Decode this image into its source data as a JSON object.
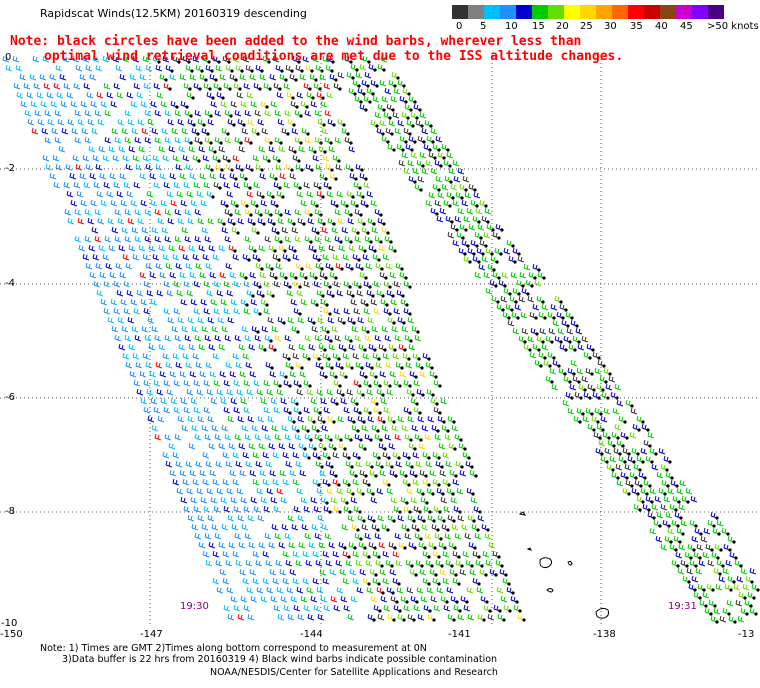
{
  "title": "Rapidscat Winds(12.5KM) 20160319 descending",
  "note": {
    "line1": "Note: black circles have been added to the wind barbs, wherever less than",
    "line2": "optimal wind retrieval conditions are met due to the ISS altitude changes."
  },
  "legend": {
    "labels": [
      "0",
      "5",
      "10",
      "15",
      "20",
      "25",
      "30",
      "35",
      "40",
      "45",
      ">50 knots"
    ],
    "colors": [
      "#333333",
      "#808080",
      "#00bfff",
      "#1e90ff",
      "#0000cd",
      "#00cc00",
      "#66dd00",
      "#ffff00",
      "#ffd700",
      "#ffa500",
      "#ff6600",
      "#ff0000",
      "#cc0000",
      "#8b4513",
      "#cc00cc",
      "#8000ff",
      "#4b0082"
    ]
  },
  "axes": {
    "lat_labels": [
      "0",
      "-2",
      "-4",
      "-6",
      "-8",
      "-10"
    ],
    "lon_labels": [
      "-150",
      "-147",
      "-144",
      "-141",
      "-138",
      "-13"
    ]
  },
  "swath_times": [
    "19:30",
    "19:31"
  ],
  "footer": {
    "line1": "Note: 1) Times are GMT 2)Times along bottom correspond to measurement at 0N",
    "line2": "3)Data buffer is 22 hrs from 20160319 4) Black wind barbs indicate possible contamination",
    "line3": "NOAA/NESDIS/Center for Satellite Applications and Research"
  }
}
